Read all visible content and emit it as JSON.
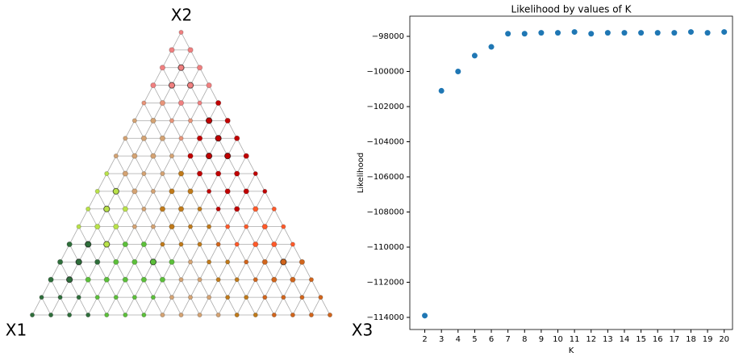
{
  "chart_data": [
    {
      "type": "ternary",
      "axis_labels": [
        "X1",
        "X2",
        "X3"
      ],
      "divisions": 16,
      "palette": [
        "#f08080",
        "#e8957a",
        "#d4a373",
        "#b9e24a",
        "#5cbf3a",
        "#2f6e3b",
        "#c07a1a",
        "#d1651c",
        "#ff5a2a",
        "#c00000"
      ],
      "groups": [
        [
          0
        ],
        [
          0,
          0
        ],
        [
          0,
          0,
          0
        ],
        [
          0,
          0,
          0,
          0
        ],
        [
          1,
          1,
          0,
          0,
          9
        ],
        [
          2,
          2,
          1,
          1,
          9,
          9
        ],
        [
          2,
          2,
          2,
          1,
          9,
          9,
          9
        ],
        [
          2,
          2,
          2,
          2,
          9,
          9,
          9,
          9
        ],
        [
          3,
          2,
          2,
          2,
          6,
          9,
          9,
          9,
          9
        ],
        [
          3,
          3,
          2,
          2,
          6,
          6,
          9,
          9,
          9,
          9
        ],
        [
          3,
          3,
          3,
          2,
          6,
          6,
          6,
          9,
          9,
          8,
          8
        ],
        [
          3,
          3,
          3,
          2,
          2,
          6,
          6,
          6,
          8,
          8,
          8,
          8
        ],
        [
          5,
          5,
          3,
          4,
          4,
          6,
          6,
          6,
          7,
          8,
          8,
          8,
          8
        ],
        [
          5,
          5,
          5,
          4,
          4,
          4,
          4,
          2,
          6,
          6,
          7,
          7,
          7,
          7
        ],
        [
          5,
          5,
          4,
          4,
          4,
          4,
          4,
          2,
          2,
          6,
          6,
          7,
          7,
          7,
          7
        ],
        [
          5,
          5,
          5,
          4,
          4,
          4,
          4,
          2,
          2,
          2,
          6,
          6,
          7,
          7,
          7,
          7
        ],
        [
          5,
          5,
          5,
          5,
          4,
          4,
          4,
          2,
          2,
          2,
          2,
          6,
          6,
          7,
          7,
          7,
          7
        ]
      ],
      "sizes": [
        [
          1
        ],
        [
          2,
          2
        ],
        [
          2,
          3,
          2
        ],
        [
          2,
          3,
          3,
          2
        ],
        [
          1,
          2,
          2,
          1,
          2
        ],
        [
          1,
          2,
          1,
          1,
          3,
          2
        ],
        [
          1,
          2,
          2,
          1,
          2,
          3,
          2
        ],
        [
          1,
          2,
          2,
          1,
          2,
          3,
          3,
          2
        ],
        [
          1,
          2,
          1,
          1,
          2,
          2,
          2,
          2,
          1
        ],
        [
          1,
          3,
          2,
          1,
          2,
          2,
          1,
          2,
          2,
          1
        ],
        [
          1,
          3,
          2,
          1,
          2,
          2,
          1,
          1,
          2,
          2,
          1
        ],
        [
          1,
          2,
          2,
          1,
          1,
          2,
          1,
          1,
          1,
          1,
          2,
          1
        ],
        [
          2,
          3,
          3,
          2,
          2,
          1,
          1,
          1,
          1,
          1,
          2,
          2,
          1
        ],
        [
          2,
          3,
          2,
          2,
          2,
          3,
          2,
          1,
          1,
          1,
          1,
          2,
          3,
          2
        ],
        [
          2,
          3,
          2,
          2,
          2,
          2,
          2,
          1,
          1,
          1,
          1,
          1,
          2,
          2,
          1
        ],
        [
          1,
          1,
          1,
          1,
          1,
          1,
          1,
          1,
          1,
          1,
          1,
          1,
          1,
          1,
          1,
          1
        ],
        [
          1,
          1,
          1,
          1,
          1,
          1,
          1,
          1,
          1,
          1,
          1,
          1,
          1,
          1,
          1,
          1,
          1
        ]
      ]
    },
    {
      "type": "scatter",
      "title": "Likelihood by values of K",
      "x_label": "K",
      "y_label": "Likelihood",
      "color": "#1f77b4",
      "x": [
        2,
        3,
        4,
        5,
        6,
        7,
        8,
        9,
        10,
        11,
        12,
        13,
        14,
        15,
        16,
        17,
        18,
        19,
        20
      ],
      "values": [
        -113900,
        -101100,
        -100000,
        -99100,
        -98600,
        -97850,
        -97850,
        -97800,
        -97800,
        -97750,
        -97850,
        -97800,
        -97800,
        -97800,
        -97800,
        -97800,
        -97750,
        -97800,
        -97750
      ],
      "xlim": [
        1.1,
        20.5
      ],
      "xticks": [
        2,
        3,
        4,
        5,
        6,
        7,
        8,
        9,
        10,
        11,
        12,
        13,
        14,
        15,
        16,
        17,
        18,
        19,
        20
      ],
      "ylim": [
        -114690,
        -96850
      ],
      "yticks": [
        {
          "value": -114000,
          "label": "−114000"
        },
        {
          "value": -112000,
          "label": "−112000"
        },
        {
          "value": -110000,
          "label": "−110000"
        },
        {
          "value": -108000,
          "label": "−108000"
        },
        {
          "value": -106000,
          "label": "−106000"
        },
        {
          "value": -104000,
          "label": "−104000"
        },
        {
          "value": -102000,
          "label": "−102000"
        },
        {
          "value": -100000,
          "label": "−100000"
        },
        {
          "value": -98000,
          "label": "−98000"
        }
      ]
    }
  ]
}
